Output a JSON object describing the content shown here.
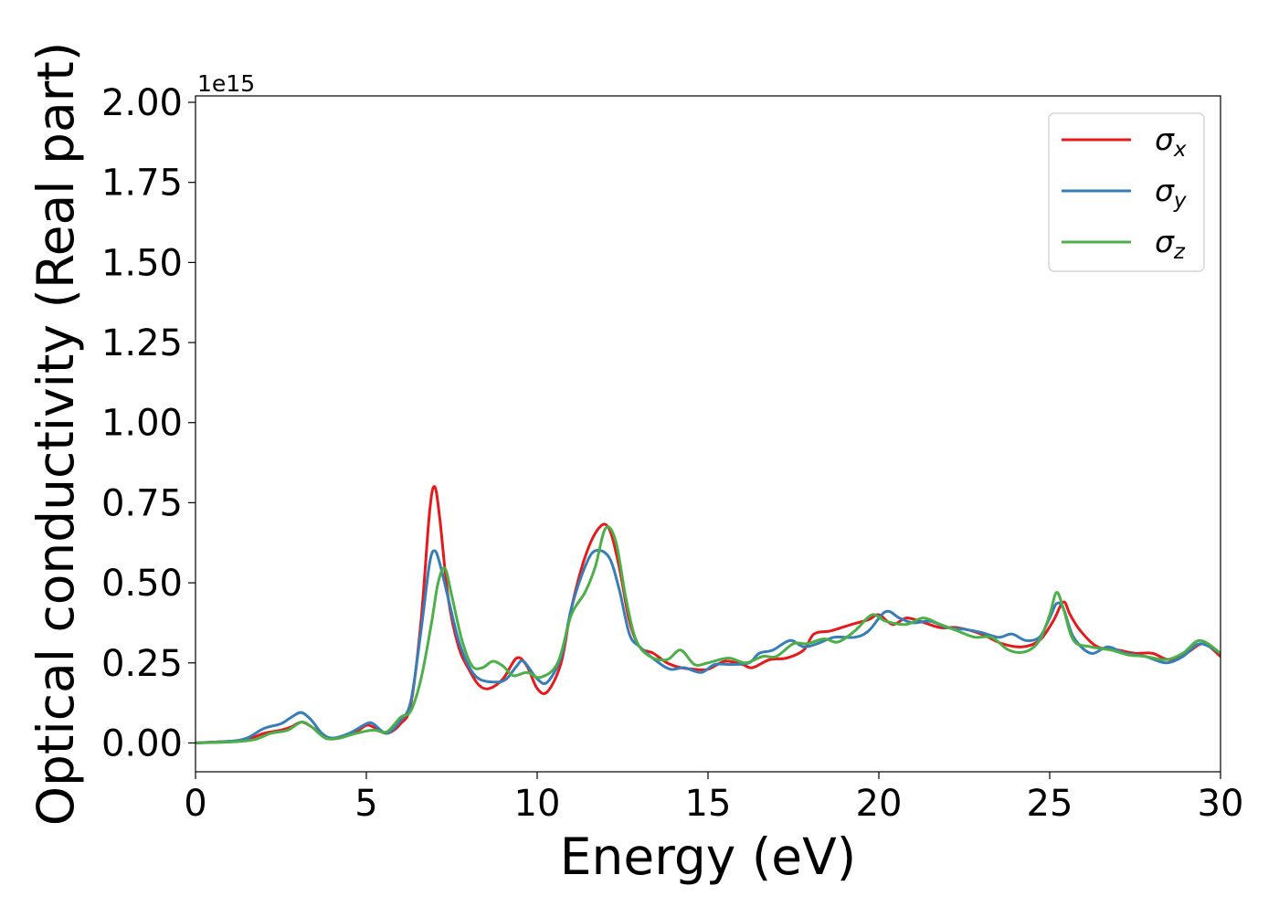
{
  "chart_data": {
    "type": "line",
    "title": "",
    "xlabel": "Energy (eV)",
    "ylabel": "Optical conductivity (Real part)",
    "y_offset_label": "1e15",
    "xlim": [
      0,
      30
    ],
    "ylim": [
      -0.09,
      2.02
    ],
    "y_scale_factor": 1000000000000000.0,
    "grid": false,
    "legend_position": "top-right",
    "x_ticks": [
      0,
      5,
      10,
      15,
      20,
      25,
      30
    ],
    "y_ticks": [
      0.0,
      0.25,
      0.5,
      0.75,
      1.0,
      1.25,
      1.5,
      1.75,
      2.0
    ],
    "x_tick_labels": [
      "0",
      "5",
      "10",
      "15",
      "20",
      "25",
      "30"
    ],
    "y_tick_labels": [
      "0.00",
      "0.25",
      "0.50",
      "0.75",
      "1.00",
      "1.25",
      "1.50",
      "1.75",
      "2.00"
    ],
    "series": [
      {
        "name": "σx",
        "base": "σ",
        "sub": "x",
        "color": "#e41a1c",
        "points": [
          [
            0,
            0
          ],
          [
            1,
            0.005
          ],
          [
            1.5,
            0.01
          ],
          [
            2,
            0.03
          ],
          [
            2.5,
            0.04
          ],
          [
            2.8,
            0.05
          ],
          [
            3.1,
            0.065
          ],
          [
            3.4,
            0.05
          ],
          [
            3.8,
            0.02
          ],
          [
            4.2,
            0.015
          ],
          [
            4.7,
            0.035
          ],
          [
            5.0,
            0.055
          ],
          [
            5.2,
            0.05
          ],
          [
            5.6,
            0.03
          ],
          [
            6.0,
            0.06
          ],
          [
            6.3,
            0.12
          ],
          [
            6.6,
            0.38
          ],
          [
            6.85,
            0.72
          ],
          [
            7.0,
            0.8
          ],
          [
            7.15,
            0.7
          ],
          [
            7.4,
            0.45
          ],
          [
            7.7,
            0.3
          ],
          [
            8.0,
            0.23
          ],
          [
            8.3,
            0.18
          ],
          [
            8.6,
            0.17
          ],
          [
            9.0,
            0.2
          ],
          [
            9.4,
            0.265
          ],
          [
            9.7,
            0.24
          ],
          [
            10.0,
            0.17
          ],
          [
            10.3,
            0.16
          ],
          [
            10.7,
            0.25
          ],
          [
            11.0,
            0.42
          ],
          [
            11.4,
            0.58
          ],
          [
            11.8,
            0.67
          ],
          [
            12.1,
            0.67
          ],
          [
            12.4,
            0.55
          ],
          [
            12.7,
            0.38
          ],
          [
            13.0,
            0.3
          ],
          [
            13.4,
            0.28
          ],
          [
            13.8,
            0.25
          ],
          [
            14.2,
            0.235
          ],
          [
            14.6,
            0.23
          ],
          [
            15.0,
            0.23
          ],
          [
            15.5,
            0.255
          ],
          [
            16.0,
            0.245
          ],
          [
            16.3,
            0.235
          ],
          [
            16.8,
            0.26
          ],
          [
            17.3,
            0.265
          ],
          [
            17.8,
            0.29
          ],
          [
            18.1,
            0.34
          ],
          [
            18.6,
            0.35
          ],
          [
            19.2,
            0.37
          ],
          [
            19.7,
            0.385
          ],
          [
            20.0,
            0.4
          ],
          [
            20.4,
            0.37
          ],
          [
            20.8,
            0.39
          ],
          [
            21.2,
            0.38
          ],
          [
            21.8,
            0.36
          ],
          [
            22.3,
            0.36
          ],
          [
            23.0,
            0.34
          ],
          [
            23.6,
            0.31
          ],
          [
            24.2,
            0.3
          ],
          [
            24.7,
            0.32
          ],
          [
            25.1,
            0.38
          ],
          [
            25.4,
            0.44
          ],
          [
            25.6,
            0.4
          ],
          [
            25.9,
            0.35
          ],
          [
            26.4,
            0.3
          ],
          [
            27.0,
            0.29
          ],
          [
            27.5,
            0.28
          ],
          [
            28.0,
            0.28
          ],
          [
            28.5,
            0.26
          ],
          [
            29.0,
            0.28
          ],
          [
            29.5,
            0.31
          ],
          [
            30,
            0.27
          ]
        ]
      },
      {
        "name": "σy",
        "base": "σ",
        "sub": "y",
        "color": "#377eb8",
        "points": [
          [
            0,
            0
          ],
          [
            1,
            0.005
          ],
          [
            1.5,
            0.015
          ],
          [
            2,
            0.045
          ],
          [
            2.5,
            0.06
          ],
          [
            2.8,
            0.08
          ],
          [
            3.1,
            0.095
          ],
          [
            3.4,
            0.07
          ],
          [
            3.7,
            0.03
          ],
          [
            4.0,
            0.015
          ],
          [
            4.5,
            0.03
          ],
          [
            5.0,
            0.06
          ],
          [
            5.2,
            0.06
          ],
          [
            5.6,
            0.03
          ],
          [
            6.0,
            0.07
          ],
          [
            6.3,
            0.13
          ],
          [
            6.6,
            0.35
          ],
          [
            6.85,
            0.56
          ],
          [
            7.0,
            0.6
          ],
          [
            7.15,
            0.56
          ],
          [
            7.4,
            0.45
          ],
          [
            7.7,
            0.32
          ],
          [
            8.0,
            0.24
          ],
          [
            8.3,
            0.2
          ],
          [
            8.8,
            0.19
          ],
          [
            9.1,
            0.2
          ],
          [
            9.4,
            0.24
          ],
          [
            9.6,
            0.255
          ],
          [
            10.0,
            0.2
          ],
          [
            10.3,
            0.19
          ],
          [
            10.7,
            0.27
          ],
          [
            11.0,
            0.42
          ],
          [
            11.4,
            0.55
          ],
          [
            11.7,
            0.6
          ],
          [
            12.1,
            0.58
          ],
          [
            12.4,
            0.48
          ],
          [
            12.7,
            0.34
          ],
          [
            13.0,
            0.3
          ],
          [
            13.5,
            0.255
          ],
          [
            13.9,
            0.23
          ],
          [
            14.3,
            0.235
          ],
          [
            14.8,
            0.22
          ],
          [
            15.2,
            0.245
          ],
          [
            15.7,
            0.245
          ],
          [
            16.2,
            0.25
          ],
          [
            16.5,
            0.28
          ],
          [
            16.9,
            0.29
          ],
          [
            17.4,
            0.32
          ],
          [
            17.8,
            0.3
          ],
          [
            18.2,
            0.31
          ],
          [
            18.7,
            0.33
          ],
          [
            19.3,
            0.33
          ],
          [
            19.7,
            0.35
          ],
          [
            20.2,
            0.41
          ],
          [
            20.6,
            0.39
          ],
          [
            21.0,
            0.375
          ],
          [
            21.5,
            0.38
          ],
          [
            22.0,
            0.36
          ],
          [
            22.5,
            0.355
          ],
          [
            23.0,
            0.345
          ],
          [
            23.5,
            0.33
          ],
          [
            23.9,
            0.34
          ],
          [
            24.3,
            0.32
          ],
          [
            24.7,
            0.33
          ],
          [
            25.0,
            0.39
          ],
          [
            25.2,
            0.435
          ],
          [
            25.4,
            0.42
          ],
          [
            25.7,
            0.33
          ],
          [
            26.2,
            0.28
          ],
          [
            26.7,
            0.3
          ],
          [
            27.2,
            0.28
          ],
          [
            27.8,
            0.27
          ],
          [
            28.4,
            0.25
          ],
          [
            28.9,
            0.27
          ],
          [
            29.4,
            0.31
          ],
          [
            30,
            0.28
          ]
        ]
      },
      {
        "name": "σz",
        "base": "σ",
        "sub": "z",
        "color": "#4daf4a",
        "points": [
          [
            0,
            0
          ],
          [
            1,
            0.003
          ],
          [
            1.7,
            0.01
          ],
          [
            2.2,
            0.03
          ],
          [
            2.7,
            0.04
          ],
          [
            3.1,
            0.065
          ],
          [
            3.4,
            0.05
          ],
          [
            3.8,
            0.015
          ],
          [
            4.2,
            0.015
          ],
          [
            4.7,
            0.03
          ],
          [
            5.2,
            0.04
          ],
          [
            5.6,
            0.035
          ],
          [
            6.0,
            0.08
          ],
          [
            6.3,
            0.1
          ],
          [
            6.6,
            0.2
          ],
          [
            6.9,
            0.37
          ],
          [
            7.1,
            0.5
          ],
          [
            7.3,
            0.545
          ],
          [
            7.5,
            0.46
          ],
          [
            7.8,
            0.32
          ],
          [
            8.1,
            0.24
          ],
          [
            8.4,
            0.235
          ],
          [
            8.7,
            0.255
          ],
          [
            9.0,
            0.24
          ],
          [
            9.3,
            0.21
          ],
          [
            9.7,
            0.22
          ],
          [
            10.1,
            0.205
          ],
          [
            10.6,
            0.25
          ],
          [
            11.0,
            0.4
          ],
          [
            11.4,
            0.47
          ],
          [
            11.7,
            0.55
          ],
          [
            12.0,
            0.67
          ],
          [
            12.3,
            0.63
          ],
          [
            12.6,
            0.45
          ],
          [
            12.9,
            0.32
          ],
          [
            13.3,
            0.27
          ],
          [
            13.8,
            0.26
          ],
          [
            14.2,
            0.29
          ],
          [
            14.6,
            0.245
          ],
          [
            15.0,
            0.25
          ],
          [
            15.6,
            0.265
          ],
          [
            16.1,
            0.25
          ],
          [
            16.6,
            0.27
          ],
          [
            17.0,
            0.27
          ],
          [
            17.5,
            0.31
          ],
          [
            17.9,
            0.31
          ],
          [
            18.4,
            0.325
          ],
          [
            18.8,
            0.315
          ],
          [
            19.3,
            0.35
          ],
          [
            19.8,
            0.4
          ],
          [
            20.2,
            0.38
          ],
          [
            20.8,
            0.37
          ],
          [
            21.3,
            0.39
          ],
          [
            21.8,
            0.37
          ],
          [
            22.3,
            0.35
          ],
          [
            22.8,
            0.33
          ],
          [
            23.3,
            0.33
          ],
          [
            23.8,
            0.29
          ],
          [
            24.3,
            0.285
          ],
          [
            24.7,
            0.32
          ],
          [
            25.0,
            0.4
          ],
          [
            25.2,
            0.47
          ],
          [
            25.4,
            0.42
          ],
          [
            25.7,
            0.32
          ],
          [
            26.2,
            0.3
          ],
          [
            26.8,
            0.29
          ],
          [
            27.3,
            0.275
          ],
          [
            27.8,
            0.27
          ],
          [
            28.4,
            0.26
          ],
          [
            28.9,
            0.28
          ],
          [
            29.4,
            0.32
          ],
          [
            30,
            0.28
          ]
        ]
      }
    ]
  }
}
